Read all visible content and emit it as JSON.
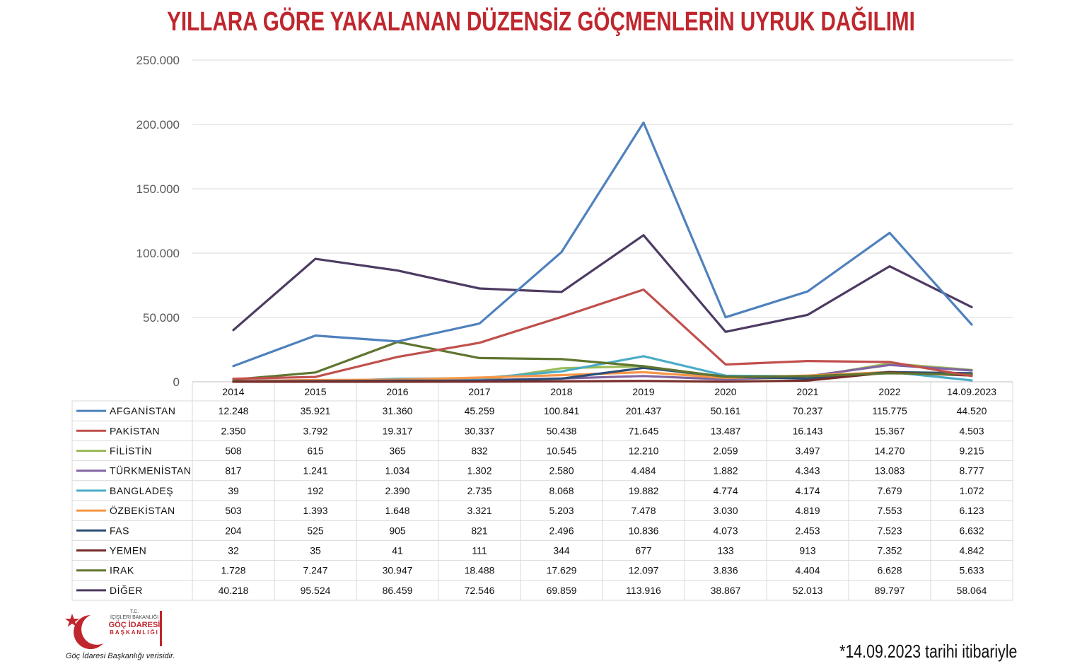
{
  "title": "YILLARA GÖRE YAKALANAN DÜZENSİZ GÖÇMENLERİN UYRUK DAĞILIMI",
  "footnote": "*14.09.2023 tarihi itibariyle",
  "logo": {
    "line1": "T.C.",
    "line2": "İÇİŞLERİ BAKANLIĞI",
    "line3": "GÖÇ İDARESİ",
    "line4": "BAŞKANLIĞI",
    "caption": "Göç İdaresi Başkanlığı verisidir."
  },
  "chart_data": {
    "type": "line",
    "title": "YILLARA GÖRE YAKALANAN DÜZENSİZ GÖÇMENLERİN UYRUK DAĞILIMI",
    "categories": [
      "2014",
      "2015",
      "2016",
      "2017",
      "2018",
      "2019",
      "2020",
      "2021",
      "2022",
      "14.09.2023"
    ],
    "y_ticks": [
      "0",
      "50.000",
      "100.000",
      "150.000",
      "200.000",
      "250.000"
    ],
    "ylim": [
      0,
      250000
    ],
    "grid": true,
    "legend": "data table below chart",
    "series": [
      {
        "name": "AFGANİSTAN",
        "color": "#4f81bd",
        "values": [
          12248,
          35921,
          31360,
          45259,
          100841,
          201437,
          50161,
          70237,
          115775,
          44520
        ],
        "labels": [
          "12.248",
          "35.921",
          "31.360",
          "45.259",
          "100.841",
          "201.437",
          "50.161",
          "70.237",
          "115.775",
          "44.520"
        ]
      },
      {
        "name": "PAKİSTAN",
        "color": "#c0504d",
        "values": [
          2350,
          3792,
          19317,
          30337,
          50438,
          71645,
          13487,
          16143,
          15367,
          4503
        ],
        "labels": [
          "2.350",
          "3.792",
          "19.317",
          "30.337",
          "50.438",
          "71.645",
          "13.487",
          "16.143",
          "15.367",
          "4.503"
        ]
      },
      {
        "name": "FİLİSTİN",
        "color": "#9bbb59",
        "values": [
          508,
          615,
          365,
          832,
          10545,
          12210,
          2059,
          3497,
          14270,
          9215
        ],
        "labels": [
          "508",
          "615",
          "365",
          "832",
          "10.545",
          "12.210",
          "2.059",
          "3.497",
          "14.270",
          "9.215"
        ]
      },
      {
        "name": "TÜRKMENİSTAN",
        "color": "#8064a2",
        "values": [
          817,
          1241,
          1034,
          1302,
          2580,
          4484,
          1882,
          4343,
          13083,
          8777
        ],
        "labels": [
          "817",
          "1.241",
          "1.034",
          "1.302",
          "2.580",
          "4.484",
          "1.882",
          "4.343",
          "13.083",
          "8.777"
        ]
      },
      {
        "name": "BANGLADEŞ",
        "color": "#4bacc6",
        "values": [
          39,
          192,
          2390,
          2735,
          8068,
          19882,
          4774,
          4174,
          7679,
          1072
        ],
        "labels": [
          "39",
          "192",
          "2.390",
          "2.735",
          "8.068",
          "19.882",
          "4.774",
          "4.174",
          "7.679",
          "1.072"
        ]
      },
      {
        "name": "ÖZBEKİSTAN",
        "color": "#f79646",
        "values": [
          503,
          1393,
          1648,
          3321,
          5203,
          7478,
          3030,
          4819,
          7553,
          6123
        ],
        "labels": [
          "503",
          "1.393",
          "1.648",
          "3.321",
          "5.203",
          "7.478",
          "3.030",
          "4.819",
          "7.553",
          "6.123"
        ]
      },
      {
        "name": "FAS",
        "color": "#2c4d75",
        "values": [
          204,
          525,
          905,
          821,
          2496,
          10836,
          4073,
          2453,
          7523,
          6632
        ],
        "labels": [
          "204",
          "525",
          "905",
          "821",
          "2.496",
          "10.836",
          "4.073",
          "2.453",
          "7.523",
          "6.632"
        ]
      },
      {
        "name": "YEMEN",
        "color": "#772c2a",
        "values": [
          32,
          35,
          41,
          111,
          344,
          677,
          133,
          913,
          7352,
          4842
        ],
        "labels": [
          "32",
          "35",
          "41",
          "111",
          "344",
          "677",
          "133",
          "913",
          "7.352",
          "4.842"
        ]
      },
      {
        "name": "IRAK",
        "color": "#5f7530",
        "values": [
          1728,
          7247,
          30947,
          18488,
          17629,
          12097,
          3836,
          4404,
          6628,
          5633
        ],
        "labels": [
          "1.728",
          "7.247",
          "30.947",
          "18.488",
          "17.629",
          "12.097",
          "3.836",
          "4.404",
          "6.628",
          "5.633"
        ]
      },
      {
        "name": "DİĞER",
        "color": "#4d3b62",
        "values": [
          40218,
          95524,
          86459,
          72546,
          69859,
          113916,
          38867,
          52013,
          89797,
          58064
        ],
        "labels": [
          "40.218",
          "95.524",
          "86.459",
          "72.546",
          "69.859",
          "113.916",
          "38.867",
          "52.013",
          "89.797",
          "58.064"
        ]
      }
    ]
  }
}
